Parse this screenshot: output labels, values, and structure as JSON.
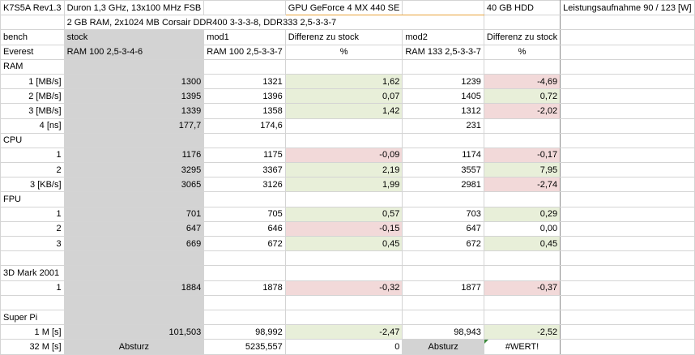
{
  "row1": {
    "a": "K7S5A Rev1.3",
    "b": "Duron 1,3 GHz, 13x100 MHz FSB",
    "d": "GPU GeForce 4 MX 440 SE",
    "f": "40 GB HDD",
    "g": "Leistungsaufnahme 90 / 123 [W]"
  },
  "row2": {
    "b": "2 GB RAM, 2x1024 MB Corsair DDR400 3-3-3-8, DDR333 2,5-3-3-7"
  },
  "header": {
    "a": "bench",
    "b": "stock",
    "c": "mod1",
    "d": "Differenz zu stock",
    "e": "mod2",
    "f": "Differenz zu stock"
  },
  "subheader": {
    "a": "Everest",
    "b": "RAM 100 2,5-3-4-6",
    "c": "RAM 100 2,5-3-3-7",
    "d": "%",
    "e": "RAM 133 2,5-3-3-7",
    "f": "%"
  },
  "sections": {
    "ram": "RAM",
    "cpu": "CPU",
    "fpu": "FPU",
    "3dmark": "3D Mark 2001",
    "superpi": "Super Pi"
  },
  "rows": {
    "ram1": [
      "1 [MB/s]",
      "1300",
      "1321",
      "1,62",
      "1239",
      "-4,69"
    ],
    "ram2": [
      "2 [MB/s]",
      "1395",
      "1396",
      "0,07",
      "1405",
      "0,72"
    ],
    "ram3": [
      "3 [MB/s]",
      "1339",
      "1358",
      "1,42",
      "1312",
      "-2,02"
    ],
    "ram4": [
      "4 [ns]",
      "177,7",
      "174,6",
      "",
      "231",
      ""
    ],
    "cpu1": [
      "1",
      "1176",
      "1175",
      "-0,09",
      "1174",
      "-0,17"
    ],
    "cpu2": [
      "2",
      "3295",
      "3367",
      "2,19",
      "3557",
      "7,95"
    ],
    "cpu3": [
      "3 [KB/s]",
      "3065",
      "3126",
      "1,99",
      "2981",
      "-2,74"
    ],
    "fpu1": [
      "1",
      "701",
      "705",
      "0,57",
      "703",
      "0,29"
    ],
    "fpu2": [
      "2",
      "647",
      "646",
      "-0,15",
      "647",
      "0,00"
    ],
    "fpu3": [
      "3",
      "669",
      "672",
      "0,45",
      "672",
      "0,45"
    ],
    "m3d1": [
      "1",
      "1884",
      "1878",
      "-0,32",
      "1877",
      "-0,37"
    ],
    "pi1": [
      "1 M [s]",
      "101,503",
      "98,992",
      "-2,47",
      "98,943",
      "-2,52"
    ],
    "pi32": [
      "32 M [s]",
      "Absturz",
      "5235,557",
      "0",
      "Absturz",
      "#WERT!"
    ]
  }
}
